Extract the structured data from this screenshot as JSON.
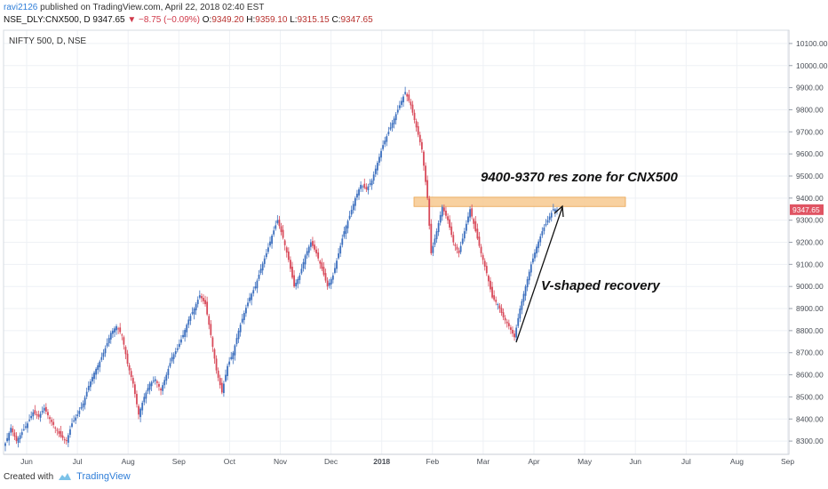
{
  "header": {
    "user": "ravi2126",
    "published": "published on TradingView.com, April 22, 2018 02:40 EST",
    "symbol": "NSE_DLY:CNX500, D",
    "last": "9347.65",
    "change": "−8.75 (−0.09%)",
    "o_label": "O:",
    "o": "9349.20",
    "h_label": "H:",
    "h": "9359.10",
    "l_label": "L:",
    "l": "9315.15",
    "c_label": "C:",
    "c": "9347.65"
  },
  "footer": {
    "created": "Created with",
    "brand": "TradingView"
  },
  "colors": {
    "up": "#3c6fbe",
    "down": "#d84a5a",
    "zone": "#f7c98f",
    "price_tag": "#e05463",
    "grid": "#eef1f5"
  },
  "chart_data": {
    "type": "candlestick",
    "title": "NIFTY 500, D, NSE",
    "ylim": [
      8240,
      10160
    ],
    "y_ticks": [
      8300,
      8400,
      8500,
      8600,
      8700,
      8800,
      8900,
      9000,
      9100,
      9200,
      9300,
      9400,
      9500,
      9600,
      9700,
      9800,
      9900,
      10000,
      10100
    ],
    "y_tick_labels": [
      "8300.00",
      "8400.00",
      "8500.00",
      "8600.00",
      "8700.00",
      "8800.00",
      "8900.00",
      "9000.00",
      "9100.00",
      "9200.00",
      "9300.00",
      "9400.00",
      "9500.00",
      "9600.00",
      "9700.00",
      "9800.00",
      "9900.00",
      "10000.00",
      "10100.00"
    ],
    "x_labels": [
      "Jun",
      "Jul",
      "Aug",
      "Sep",
      "Oct",
      "Nov",
      "Dec",
      "2018",
      "Feb",
      "Mar",
      "Apr",
      "May",
      "Jun",
      "Jul",
      "Aug",
      "Sep"
    ],
    "last_price": "9347.65",
    "price_path": [
      [
        0,
        8290
      ],
      [
        3,
        8360
      ],
      [
        6,
        8300
      ],
      [
        9,
        8340
      ],
      [
        12,
        8380
      ],
      [
        15,
        8430
      ],
      [
        18,
        8410
      ],
      [
        21,
        8450
      ],
      [
        24,
        8400
      ],
      [
        27,
        8360
      ],
      [
        30,
        8320
      ],
      [
        33,
        8300
      ],
      [
        36,
        8380
      ],
      [
        39,
        8420
      ],
      [
        42,
        8470
      ],
      [
        45,
        8550
      ],
      [
        48,
        8610
      ],
      [
        51,
        8660
      ],
      [
        54,
        8720
      ],
      [
        57,
        8790
      ],
      [
        60,
        8820
      ],
      [
        63,
        8780
      ],
      [
        66,
        8650
      ],
      [
        69,
        8560
      ],
      [
        72,
        8420
      ],
      [
        75,
        8500
      ],
      [
        78,
        8560
      ],
      [
        81,
        8580
      ],
      [
        84,
        8530
      ],
      [
        87,
        8600
      ],
      [
        90,
        8680
      ],
      [
        93,
        8720
      ],
      [
        96,
        8780
      ],
      [
        99,
        8850
      ],
      [
        102,
        8900
      ],
      [
        105,
        8960
      ],
      [
        108,
        8920
      ],
      [
        111,
        8780
      ],
      [
        114,
        8620
      ],
      [
        117,
        8520
      ],
      [
        120,
        8640
      ],
      [
        123,
        8700
      ],
      [
        126,
        8800
      ],
      [
        129,
        8880
      ],
      [
        132,
        8950
      ],
      [
        135,
        9000
      ],
      [
        138,
        9080
      ],
      [
        141,
        9150
      ],
      [
        144,
        9230
      ],
      [
        147,
        9300
      ],
      [
        150,
        9220
      ],
      [
        153,
        9120
      ],
      [
        156,
        9000
      ],
      [
        159,
        9050
      ],
      [
        162,
        9140
      ],
      [
        165,
        9200
      ],
      [
        168,
        9150
      ],
      [
        171,
        9080
      ],
      [
        174,
        9000
      ],
      [
        177,
        9050
      ],
      [
        180,
        9150
      ],
      [
        183,
        9250
      ],
      [
        186,
        9320
      ],
      [
        189,
        9400
      ],
      [
        192,
        9460
      ],
      [
        195,
        9440
      ],
      [
        198,
        9480
      ],
      [
        201,
        9560
      ],
      [
        204,
        9640
      ],
      [
        207,
        9700
      ],
      [
        210,
        9760
      ],
      [
        213,
        9820
      ],
      [
        216,
        9880
      ],
      [
        219,
        9820
      ],
      [
        222,
        9720
      ],
      [
        225,
        9620
      ],
      [
        228,
        9400
      ],
      [
        230,
        9150
      ],
      [
        233,
        9250
      ],
      [
        236,
        9360
      ],
      [
        239,
        9300
      ],
      [
        242,
        9200
      ],
      [
        245,
        9150
      ],
      [
        248,
        9250
      ],
      [
        251,
        9350
      ],
      [
        254,
        9250
      ],
      [
        257,
        9150
      ],
      [
        260,
        9060
      ],
      [
        263,
        8950
      ],
      [
        266,
        8920
      ],
      [
        269,
        8860
      ],
      [
        272,
        8820
      ],
      [
        275,
        8770
      ],
      [
        278,
        8900
      ],
      [
        281,
        9000
      ],
      [
        284,
        9100
      ],
      [
        287,
        9180
      ],
      [
        290,
        9250
      ],
      [
        293,
        9300
      ],
      [
        296,
        9350
      ],
      [
        298,
        9347.65
      ]
    ],
    "annotations": [
      {
        "text": "9400-9370 res zone for CNX500",
        "y_from": 9370,
        "y_to": 9400
      },
      {
        "text": "V-shaped recovery"
      }
    ]
  }
}
